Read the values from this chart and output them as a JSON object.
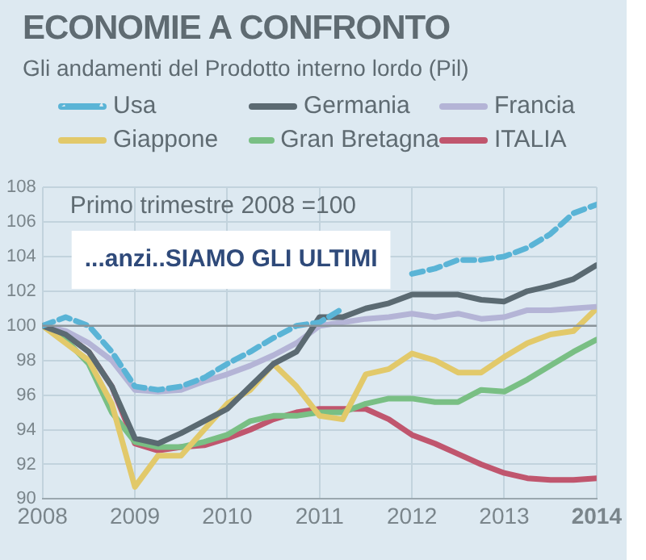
{
  "chart_data": {
    "type": "line",
    "title": "ECONOMIE A CONFRONTO",
    "subtitle": "Gli andamenti del Prodotto interno lordo (Pil)",
    "x": [
      2008,
      2008.25,
      2008.5,
      2008.75,
      2009,
      2009.25,
      2009.5,
      2009.75,
      2010,
      2010.25,
      2010.5,
      2010.75,
      2011,
      2011.25,
      2011.5,
      2011.75,
      2012,
      2012.25,
      2012.5,
      2012.75,
      2013,
      2013.25,
      2013.5,
      2013.75,
      2014
    ],
    "series": [
      {
        "name": "Usa",
        "color": "#5ab4d6",
        "line_style": "dashed",
        "values": [
          100,
          100.5,
          100,
          98.5,
          96.5,
          96.3,
          96.5,
          97,
          97.8,
          98.5,
          99.3,
          100,
          100.2,
          101,
          null,
          null,
          103,
          103.3,
          103.8,
          103.8,
          104,
          104.5,
          105.3,
          106.5,
          107
        ]
      },
      {
        "name": "Germania",
        "color": "#5b6a72",
        "values": [
          100,
          99.5,
          98.5,
          96.5,
          93.5,
          93.2,
          93.8,
          94.5,
          95.2,
          96.5,
          97.8,
          98.5,
          100.5,
          100.5,
          101,
          101.3,
          101.8,
          101.8,
          101.8,
          101.5,
          101.4,
          102,
          102.3,
          102.7,
          103.5
        ]
      },
      {
        "name": "Francia",
        "color": "#b4b4d6",
        "values": [
          100,
          99.7,
          99,
          98,
          96.3,
          96.2,
          96.3,
          96.8,
          97.2,
          97.7,
          98.3,
          99,
          100,
          100.2,
          100.4,
          100.5,
          100.7,
          100.5,
          100.7,
          100.4,
          100.5,
          100.9,
          100.9,
          101,
          101.1
        ]
      },
      {
        "name": "Giappone",
        "color": "#e2c96a",
        "values": [
          100,
          99,
          98,
          95.5,
          90.7,
          92.5,
          92.5,
          94,
          95.5,
          96.3,
          97.8,
          96.5,
          94.8,
          94.6,
          97.2,
          97.5,
          98.4,
          98,
          97.3,
          97.3,
          98.2,
          99,
          99.5,
          99.7,
          101
        ]
      },
      {
        "name": "Gran Bretagna",
        "color": "#79bf84",
        "values": [
          100,
          99.2,
          97.8,
          95,
          93.3,
          93,
          93,
          93.3,
          93.7,
          94.5,
          94.8,
          94.8,
          95,
          95,
          95.5,
          95.8,
          95.8,
          95.6,
          95.6,
          96.3,
          96.2,
          96.9,
          97.7,
          98.5,
          99.2
        ]
      },
      {
        "name": "ITALIA",
        "color": "#c0566e",
        "values": [
          100,
          99.5,
          98.5,
          96.5,
          93.2,
          92.8,
          93,
          93.1,
          93.5,
          94,
          94.6,
          95,
          95.2,
          95.2,
          95.2,
          94.6,
          93.7,
          93.2,
          92.6,
          92,
          91.5,
          91.2,
          91.1,
          91.1,
          91.2
        ]
      }
    ],
    "xlim": [
      2008,
      2014
    ],
    "xticks": [
      2008,
      2009,
      2010,
      2011,
      2012,
      2013,
      2014
    ],
    "ylim": [
      90,
      108
    ],
    "yticks": [
      90,
      92,
      94,
      96,
      98,
      100,
      102,
      104,
      106,
      108
    ],
    "ref_lines": [
      {
        "axis": "y",
        "value": 100,
        "color": "#8a949a"
      }
    ],
    "annotations": [
      "Primo trimestre 2008 =100",
      "...anzi..SIAMO GLI ULTIMI"
    ],
    "grid": true,
    "legend": "top",
    "line_style": "solid",
    "marker": "none"
  }
}
